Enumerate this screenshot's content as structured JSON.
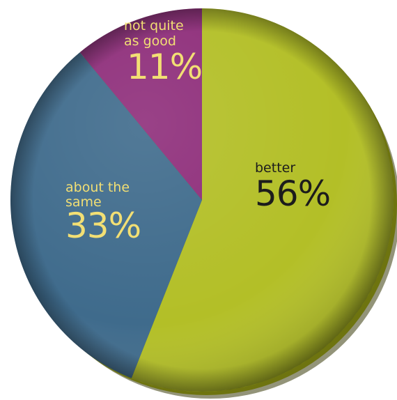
{
  "chart_data": {
    "type": "pie",
    "title": "",
    "categories": [
      "better",
      "about the same",
      "not quite as good"
    ],
    "values": [
      56,
      33,
      11
    ],
    "value_labels": [
      "56%",
      "33%",
      "11%"
    ],
    "colors": [
      "#b3bf27",
      "#3f6b8c",
      "#8e2d7a"
    ],
    "label_colors": [
      "#1c1c1c",
      "#f2df74",
      "#f2df74"
    ],
    "start_angle_deg": 0,
    "direction": "clockwise",
    "legend": "none",
    "style": "3d-disc-with-drop-shadow"
  }
}
